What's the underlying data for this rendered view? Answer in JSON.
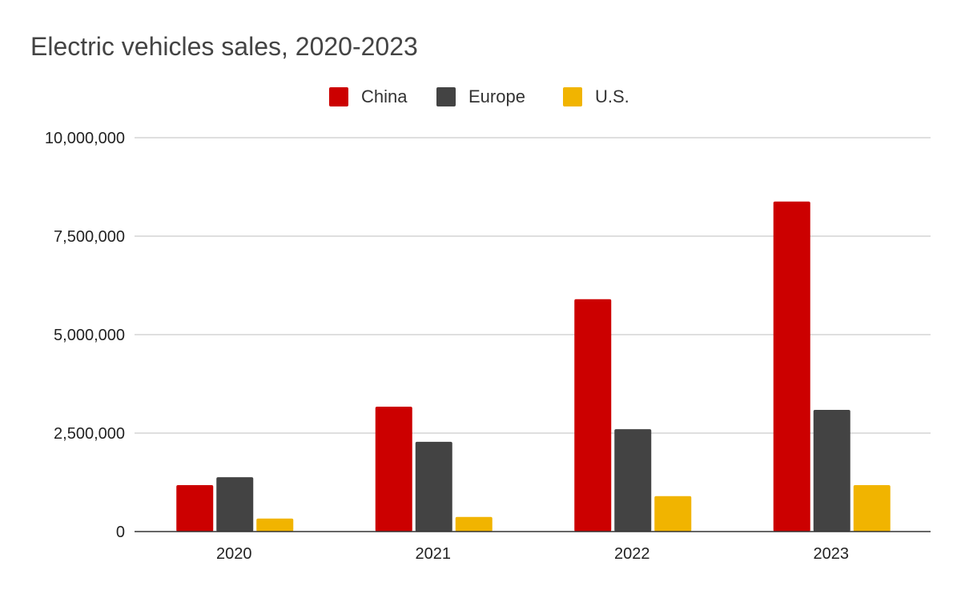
{
  "chart_data": {
    "type": "bar",
    "title": "Electric vehicles sales, 2020-2023",
    "xlabel": "",
    "ylabel": "",
    "categories": [
      "2020",
      "2021",
      "2022",
      "2023"
    ],
    "series": [
      {
        "name": "China",
        "color": "#cc0000",
        "values": [
          1180000,
          3170000,
          5900000,
          8380000
        ]
      },
      {
        "name": "Europe",
        "color": "#434343",
        "values": [
          1380000,
          2280000,
          2600000,
          3090000
        ]
      },
      {
        "name": "U.S.",
        "color": "#f1b400",
        "values": [
          330000,
          370000,
          900000,
          1180000
        ]
      }
    ],
    "ylim": [
      0,
      10000000
    ],
    "yticks": [
      0,
      2500000,
      5000000,
      7500000,
      10000000
    ],
    "ytick_labels": [
      "0",
      "2,500,000",
      "5,000,000",
      "7,500,000",
      "10,000,000"
    ],
    "grid": true,
    "legend": "top-center"
  }
}
